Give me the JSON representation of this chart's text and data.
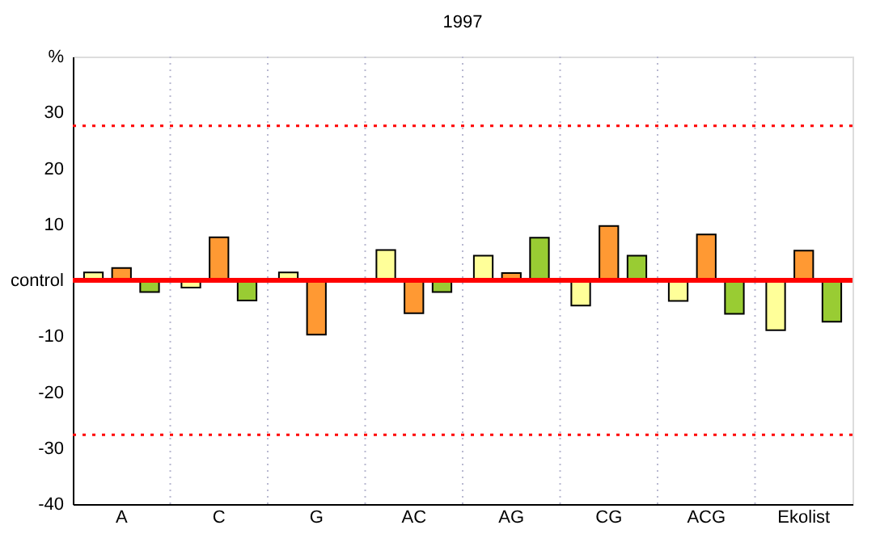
{
  "chart_data": {
    "type": "bar",
    "title": "1997",
    "categories": [
      "A",
      "C",
      "G",
      "AC",
      "AG",
      "CG",
      "ACG",
      "Ekolist"
    ],
    "series": [
      {
        "color": "#ffff99",
        "values": [
          1.4,
          -1.3,
          1.4,
          5.4,
          4.4,
          -4.5,
          -3.7,
          -8.9
        ]
      },
      {
        "color": "#ff9933",
        "values": [
          2.2,
          7.7,
          -9.7,
          -5.9,
          1.3,
          9.7,
          8.2,
          5.3
        ]
      },
      {
        "color": "#99cc33",
        "values": [
          -2.1,
          -3.6,
          null,
          -2.1,
          7.6,
          4.4,
          -6.0,
          -7.4
        ]
      }
    ],
    "ylim": [
      -40,
      40
    ],
    "yticks": [
      -40,
      -30,
      -20,
      -10,
      {
        "value": 0,
        "label": "control"
      },
      10,
      20,
      30,
      {
        "value": 40,
        "label": "%"
      }
    ],
    "ref_lines": [
      {
        "axis": "y",
        "value": 0,
        "color": "#ff0000",
        "line_style": "solid"
      },
      {
        "axis": "y",
        "value": 27.6,
        "color": "#ff0000",
        "line_style": "dotted"
      },
      {
        "axis": "y",
        "value": -27.6,
        "color": "#ff0000",
        "line_style": "dotted"
      }
    ],
    "grid": "x",
    "legend": false
  }
}
